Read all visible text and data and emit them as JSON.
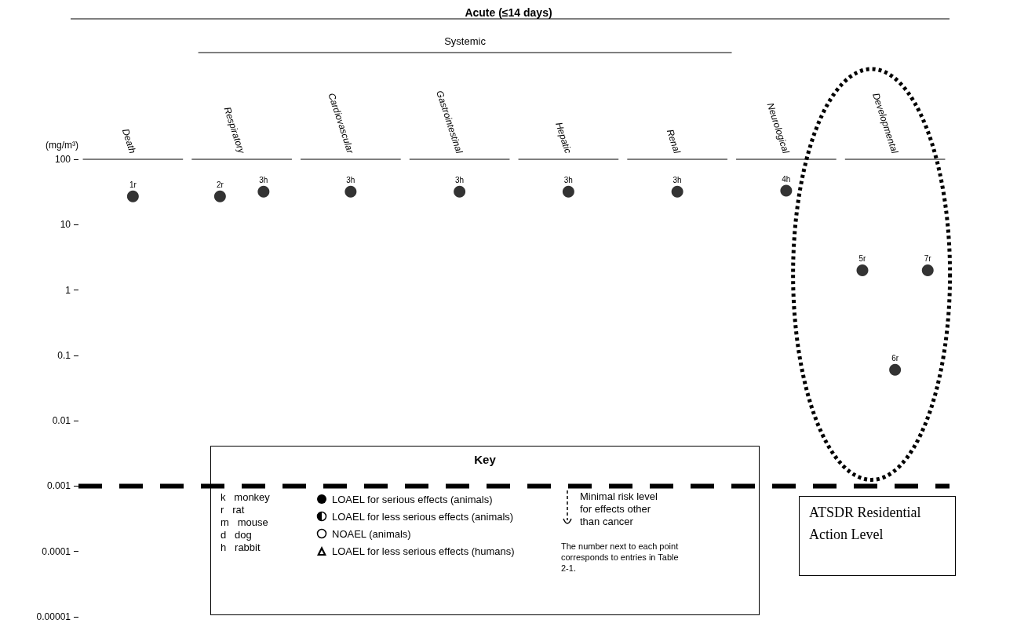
{
  "chart_data": {
    "type": "scatter",
    "title": "Acute (≤14 days)",
    "ylabel": "(mg/m³)",
    "categories": [
      "Death",
      "Respiratory",
      "Cardiovascular",
      "Gastrointestinal",
      "Hepatic",
      "Renal",
      "Neurological",
      "Developmental"
    ],
    "series": [
      {
        "color": "#000000",
        "x": [
          "Death",
          "Respiratory",
          "Respiratory",
          "Cardiovascular",
          "Gastrointestinal",
          "Hepatic",
          "Renal",
          "Neurological",
          "Developmental",
          "Developmental",
          "Developmental"
        ],
        "values": [
          27,
          27,
          32,
          32,
          32,
          32,
          32,
          33,
          2,
          0.06,
          2
        ]
      }
    ],
    "log": true,
    "ylim": [
      1e-05,
      100
    ],
    "yticks": [
      {
        "value": 1e-05,
        "label": "0.00001"
      },
      0.0001,
      0.001,
      0.01,
      0.1,
      1,
      10,
      100
    ],
    "grid": false,
    "marker": "circle",
    "ref_lines": [
      {
        "axis": "y",
        "value": 0.001,
        "label": "ATSDR Residential Action Level",
        "color": "#000000",
        "line_style": "dashed"
      }
    ],
    "annotations": [
      "Systemic",
      "Key",
      "k   monkey",
      "r   rat",
      "m   mouse",
      "d   dog",
      "h   rabbit",
      "LOAEL for serious effects (animals)",
      "LOAEL for less serious effects (animals)",
      "NOAEL (animals)",
      "LOAEL for less serious effects (humans)",
      "Minimal risk level for effects other than cancer",
      "The number next to each point corresponds to entries in Table 2-1.",
      "1r",
      "2r",
      "3h",
      "3h",
      "3h",
      "3h",
      "3h",
      "4h",
      "5r",
      "6r",
      "7r"
    ]
  }
}
